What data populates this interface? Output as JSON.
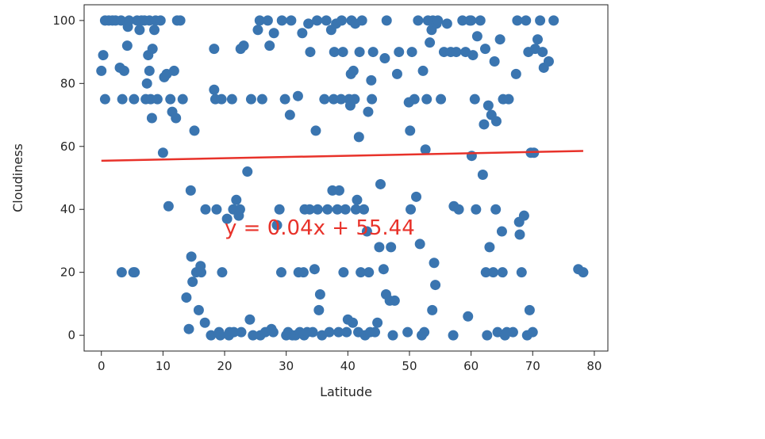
{
  "chart_data": {
    "type": "scatter",
    "title": "",
    "xlabel": "Latitude",
    "ylabel": "Cloudiness",
    "xlim": [
      -2.8,
      82.2
    ],
    "ylim": [
      -5,
      105
    ],
    "xticks": [
      0,
      10,
      20,
      30,
      40,
      50,
      60,
      70,
      80
    ],
    "yticks": [
      0,
      20,
      40,
      60,
      80,
      100
    ],
    "grid": false,
    "marker_color": "#3a75b0",
    "regression": {
      "slope": 0.04,
      "intercept": 55.44,
      "x_range": [
        0,
        78.2
      ],
      "color": "#e8322a",
      "label": "y = 0.04x + 55.44",
      "label_position": [
        20,
        32
      ]
    },
    "points": [
      [
        0,
        84
      ],
      [
        0.3,
        89
      ],
      [
        0.6,
        75
      ],
      [
        0.6,
        100
      ],
      [
        1.2,
        100
      ],
      [
        1.8,
        100
      ],
      [
        2.3,
        100
      ],
      [
        3,
        85
      ],
      [
        3.2,
        100
      ],
      [
        3.3,
        20
      ],
      [
        3.4,
        75
      ],
      [
        3.7,
        84
      ],
      [
        4.2,
        92
      ],
      [
        4.3,
        98
      ],
      [
        4.5,
        100
      ],
      [
        5.2,
        20
      ],
      [
        5.3,
        75
      ],
      [
        5.4,
        20
      ],
      [
        5.8,
        100
      ],
      [
        6.2,
        97
      ],
      [
        6.5,
        100
      ],
      [
        7.0,
        100
      ],
      [
        7.2,
        75
      ],
      [
        7.4,
        80
      ],
      [
        7.6,
        89
      ],
      [
        7.8,
        84
      ],
      [
        7.8,
        100
      ],
      [
        8,
        75
      ],
      [
        8.2,
        69
      ],
      [
        8.3,
        91
      ],
      [
        8.6,
        97
      ],
      [
        8.8,
        100
      ],
      [
        9.1,
        75
      ],
      [
        9.6,
        100
      ],
      [
        10,
        58
      ],
      [
        10.2,
        82
      ],
      [
        10.6,
        83
      ],
      [
        10.9,
        41
      ],
      [
        11.2,
        75
      ],
      [
        11.5,
        71
      ],
      [
        11.8,
        84
      ],
      [
        12.1,
        69
      ],
      [
        12.3,
        100
      ],
      [
        12.8,
        100
      ],
      [
        13.2,
        75
      ],
      [
        13.8,
        12
      ],
      [
        14.2,
        2
      ],
      [
        14.5,
        46
      ],
      [
        14.6,
        25
      ],
      [
        14.8,
        17
      ],
      [
        15.1,
        65
      ],
      [
        15.4,
        20
      ],
      [
        15.8,
        8
      ],
      [
        16.1,
        22
      ],
      [
        16.2,
        20
      ],
      [
        16.8,
        4
      ],
      [
        16.9,
        40
      ],
      [
        17.8,
        0
      ],
      [
        18.3,
        91
      ],
      [
        18.3,
        78
      ],
      [
        18.5,
        75
      ],
      [
        18.7,
        40
      ],
      [
        19.1,
        1
      ],
      [
        19.3,
        0
      ],
      [
        19.5,
        75
      ],
      [
        19.6,
        20
      ],
      [
        20.4,
        37
      ],
      [
        20.7,
        0
      ],
      [
        20.8,
        1
      ],
      [
        21.2,
        75
      ],
      [
        21.4,
        40
      ],
      [
        21.5,
        1
      ],
      [
        21.9,
        43
      ],
      [
        22.3,
        38
      ],
      [
        22.5,
        40
      ],
      [
        22.6,
        91
      ],
      [
        22.7,
        1
      ],
      [
        23.1,
        92
      ],
      [
        23.7,
        52
      ],
      [
        24.1,
        5
      ],
      [
        24.3,
        75
      ],
      [
        24.6,
        0
      ],
      [
        25.4,
        97
      ],
      [
        25.7,
        100
      ],
      [
        25.8,
        0
      ],
      [
        26.1,
        75
      ],
      [
        26.6,
        1
      ],
      [
        27.0,
        100
      ],
      [
        27.3,
        92
      ],
      [
        27.6,
        2
      ],
      [
        27.9,
        1
      ],
      [
        28.0,
        96
      ],
      [
        28.5,
        35
      ],
      [
        28.9,
        40
      ],
      [
        29.2,
        20
      ],
      [
        29.3,
        100
      ],
      [
        29.8,
        75
      ],
      [
        30.0,
        0
      ],
      [
        30.3,
        1
      ],
      [
        30.6,
        70
      ],
      [
        30.8,
        100
      ],
      [
        31.0,
        0
      ],
      [
        31.5,
        0
      ],
      [
        31.9,
        76
      ],
      [
        32.0,
        20
      ],
      [
        32.2,
        1
      ],
      [
        32.6,
        96
      ],
      [
        32.8,
        20
      ],
      [
        32.9,
        0
      ],
      [
        33.0,
        40
      ],
      [
        33.4,
        1
      ],
      [
        33.6,
        99
      ],
      [
        33.8,
        40
      ],
      [
        33.9,
        90
      ],
      [
        34.3,
        1
      ],
      [
        34.6,
        21
      ],
      [
        34.8,
        65
      ],
      [
        35.0,
        100
      ],
      [
        35.1,
        40
      ],
      [
        35.3,
        8
      ],
      [
        35.5,
        13
      ],
      [
        35.8,
        0
      ],
      [
        36.2,
        75
      ],
      [
        36.5,
        100
      ],
      [
        36.7,
        40
      ],
      [
        37.0,
        1
      ],
      [
        37.3,
        97
      ],
      [
        37.5,
        46
      ],
      [
        37.7,
        75
      ],
      [
        37.8,
        90
      ],
      [
        38.1,
        99
      ],
      [
        38.3,
        40
      ],
      [
        38.5,
        1
      ],
      [
        38.6,
        46
      ],
      [
        38.9,
        75
      ],
      [
        39.0,
        100
      ],
      [
        39.2,
        90
      ],
      [
        39.3,
        20
      ],
      [
        39.6,
        40
      ],
      [
        39.8,
        1
      ],
      [
        40.0,
        5
      ],
      [
        40.2,
        75
      ],
      [
        40.4,
        73
      ],
      [
        40.5,
        83
      ],
      [
        40.6,
        100
      ],
      [
        40.8,
        4
      ],
      [
        40.9,
        84
      ],
      [
        41.1,
        75
      ],
      [
        41.2,
        99
      ],
      [
        41.3,
        40
      ],
      [
        41.5,
        43
      ],
      [
        41.7,
        1
      ],
      [
        41.8,
        63
      ],
      [
        41.9,
        90
      ],
      [
        42.1,
        20
      ],
      [
        42.3,
        100
      ],
      [
        42.6,
        40
      ],
      [
        42.8,
        0
      ],
      [
        43.1,
        33
      ],
      [
        43.3,
        71
      ],
      [
        43.4,
        20
      ],
      [
        43.6,
        1
      ],
      [
        43.8,
        81
      ],
      [
        43.9,
        75
      ],
      [
        44.1,
        90
      ],
      [
        44.4,
        1
      ],
      [
        44.8,
        4
      ],
      [
        45.1,
        28
      ],
      [
        45.3,
        48
      ],
      [
        45.8,
        21
      ],
      [
        46.0,
        88
      ],
      [
        46.2,
        13
      ],
      [
        46.3,
        100
      ],
      [
        46.8,
        11
      ],
      [
        47.0,
        28
      ],
      [
        47.3,
        0
      ],
      [
        47.6,
        11
      ],
      [
        48.0,
        83
      ],
      [
        48.3,
        90
      ],
      [
        49.7,
        1
      ],
      [
        49.9,
        74
      ],
      [
        50.1,
        65
      ],
      [
        50.2,
        40
      ],
      [
        50.4,
        90
      ],
      [
        50.8,
        75
      ],
      [
        51.1,
        44
      ],
      [
        51.4,
        100
      ],
      [
        51.7,
        29
      ],
      [
        52.0,
        0
      ],
      [
        52.2,
        84
      ],
      [
        52.4,
        1
      ],
      [
        52.6,
        59
      ],
      [
        52.8,
        75
      ],
      [
        53.0,
        100
      ],
      [
        53.3,
        93
      ],
      [
        53.6,
        97
      ],
      [
        53.7,
        8
      ],
      [
        53.8,
        100
      ],
      [
        54.0,
        23
      ],
      [
        54.2,
        16
      ],
      [
        54.4,
        99
      ],
      [
        54.6,
        100
      ],
      [
        55.1,
        75
      ],
      [
        55.6,
        90
      ],
      [
        56.1,
        99
      ],
      [
        56.7,
        90
      ],
      [
        57.1,
        0
      ],
      [
        57.2,
        41
      ],
      [
        57.6,
        90
      ],
      [
        58.0,
        40
      ],
      [
        58.6,
        100
      ],
      [
        59.1,
        90
      ],
      [
        59.5,
        6
      ],
      [
        59.8,
        100
      ],
      [
        60.0,
        100
      ],
      [
        60.1,
        57
      ],
      [
        60.3,
        89
      ],
      [
        60.6,
        75
      ],
      [
        60.8,
        40
      ],
      [
        61.0,
        95
      ],
      [
        61.5,
        100
      ],
      [
        61.9,
        51
      ],
      [
        62.1,
        67
      ],
      [
        62.3,
        91
      ],
      [
        62.4,
        20
      ],
      [
        62.6,
        0
      ],
      [
        62.8,
        73
      ],
      [
        63.0,
        28
      ],
      [
        63.3,
        70
      ],
      [
        63.6,
        20
      ],
      [
        63.8,
        87
      ],
      [
        64.0,
        40
      ],
      [
        64.1,
        68
      ],
      [
        64.3,
        1
      ],
      [
        64.7,
        94
      ],
      [
        65.0,
        33
      ],
      [
        65.1,
        20
      ],
      [
        65.2,
        75
      ],
      [
        65.5,
        0
      ],
      [
        65.8,
        1
      ],
      [
        66.1,
        75
      ],
      [
        66.8,
        1
      ],
      [
        67.3,
        83
      ],
      [
        67.5,
        100
      ],
      [
        67.8,
        36
      ],
      [
        67.9,
        32
      ],
      [
        68.2,
        20
      ],
      [
        68.6,
        38
      ],
      [
        68.9,
        100
      ],
      [
        69.1,
        0
      ],
      [
        69.3,
        90
      ],
      [
        69.5,
        8
      ],
      [
        69.7,
        58
      ],
      [
        70.0,
        1
      ],
      [
        70.2,
        58
      ],
      [
        70.4,
        91
      ],
      [
        70.8,
        94
      ],
      [
        71.2,
        100
      ],
      [
        71.6,
        90
      ],
      [
        71.8,
        85
      ],
      [
        72.6,
        87
      ],
      [
        73.4,
        100
      ],
      [
        77.4,
        21
      ],
      [
        78.2,
        20
      ]
    ]
  }
}
